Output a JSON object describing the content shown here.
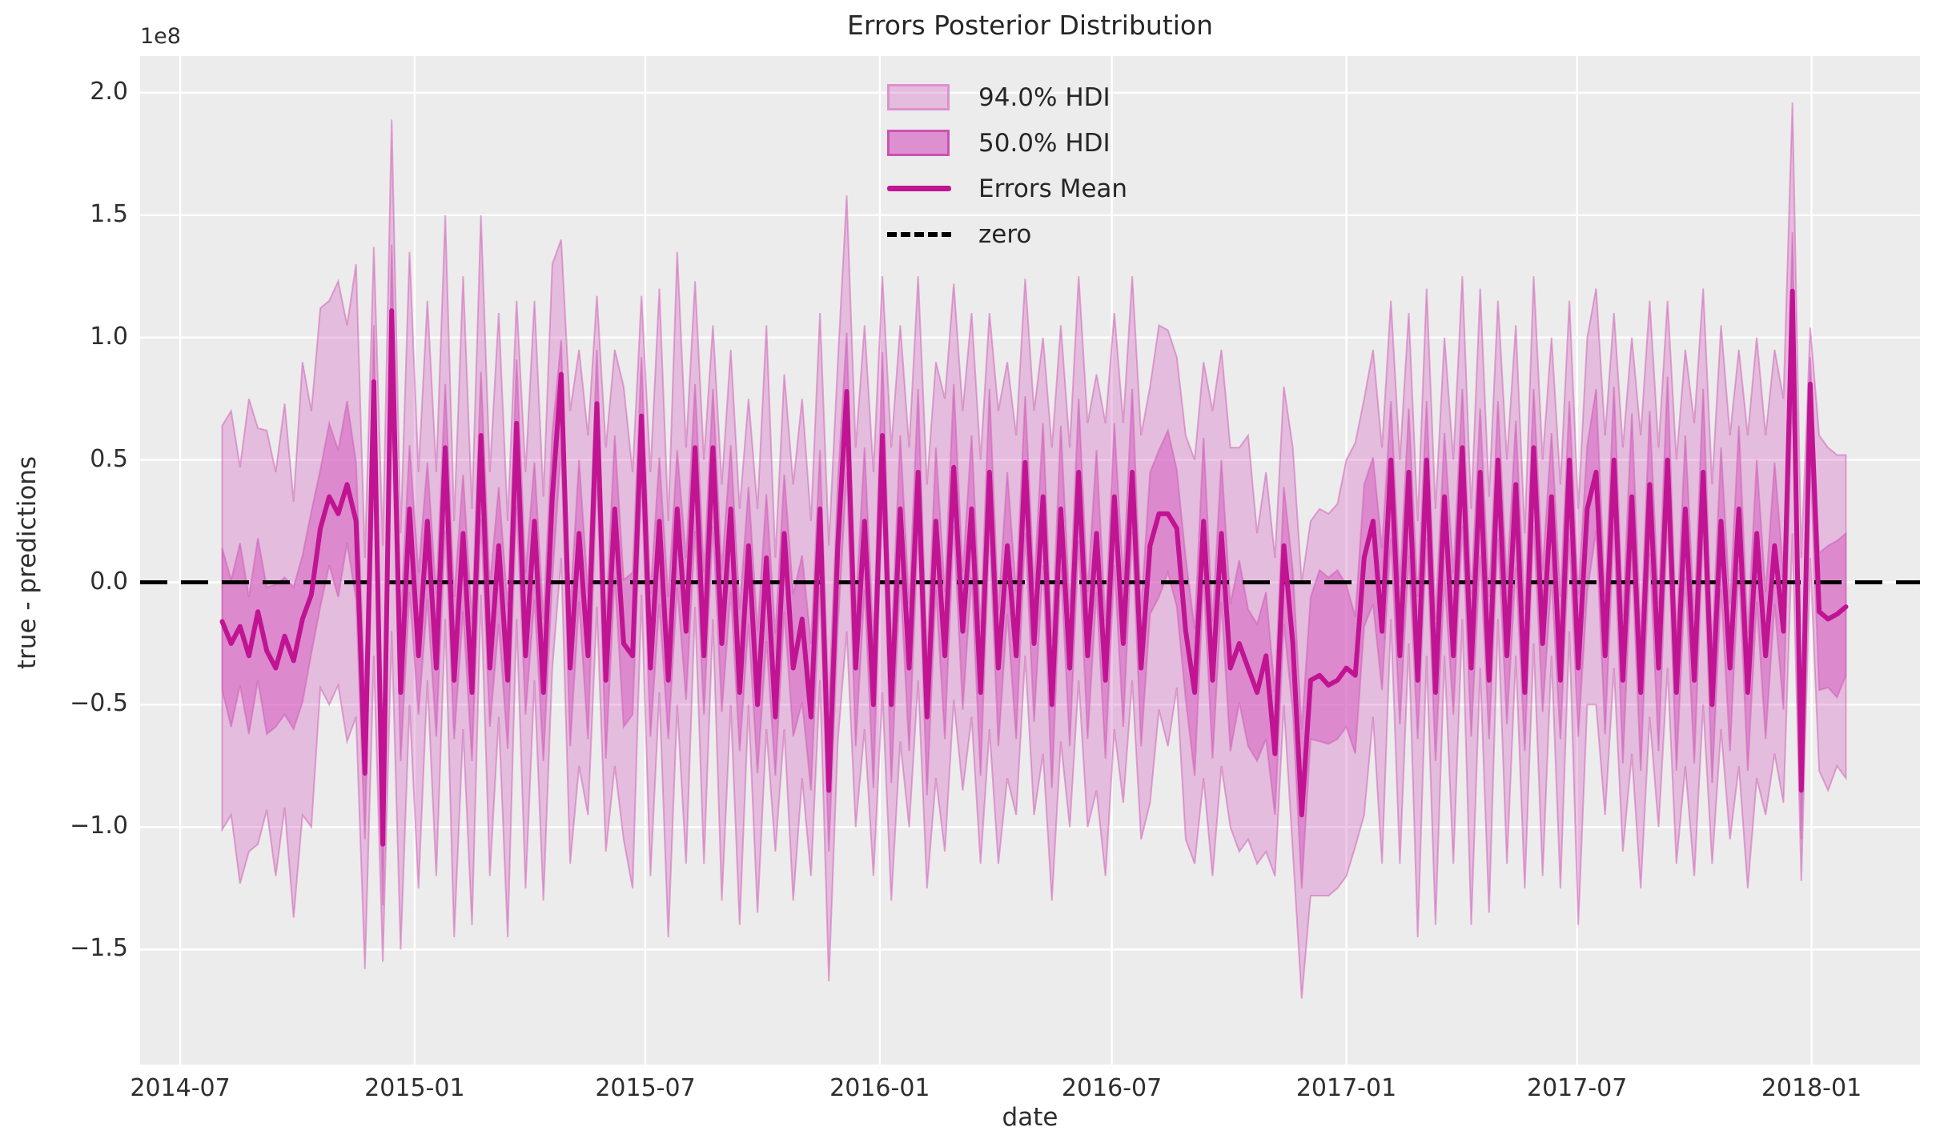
{
  "chart_data": {
    "type": "area",
    "title": "Errors Posterior Distribution",
    "xlabel": "date",
    "ylabel": "true - predictions",
    "offset_text": "1e8",
    "grid": true,
    "legend_position": "upper center",
    "x_tick_labels": [
      "2014-07",
      "2015-01",
      "2015-07",
      "2016-01",
      "2016-07",
      "2017-01",
      "2017-07",
      "2018-01"
    ],
    "x_tick_weeks": [
      -4.71,
      21.57,
      47.43,
      73.71,
      99.71,
      126.0,
      151.86,
      178.14
    ],
    "y_tick_labels": [
      "2.0",
      "1.5",
      "1.0",
      "0.5",
      "0.0",
      "−0.5",
      "−1.0",
      "−1.5"
    ],
    "y_tick_values": [
      2.0,
      1.5,
      1.0,
      0.5,
      0.0,
      -0.5,
      -1.0,
      -1.5
    ],
    "xlim_weeks": [
      -9.2,
      190.3
    ],
    "ylim": [
      -1.97,
      2.15
    ],
    "unit": "1e8",
    "series_start_date": "2014-08-03",
    "series_freq_days": 7,
    "mean": [
      -0.16,
      -0.25,
      -0.18,
      -0.3,
      -0.12,
      -0.28,
      -0.35,
      -0.22,
      -0.32,
      -0.15,
      -0.05,
      0.22,
      0.35,
      0.28,
      0.4,
      0.25,
      -0.78,
      0.82,
      -1.07,
      1.11,
      -0.45,
      0.3,
      -0.3,
      0.25,
      -0.35,
      0.55,
      -0.4,
      0.2,
      -0.45,
      0.6,
      -0.35,
      0.15,
      -0.4,
      0.65,
      -0.3,
      0.25,
      -0.45,
      0.35,
      0.85,
      -0.35,
      0.2,
      -0.3,
      0.73,
      -0.4,
      0.3,
      -0.25,
      -0.3,
      0.68,
      -0.35,
      0.25,
      -0.4,
      0.3,
      -0.2,
      0.55,
      -0.3,
      0.55,
      -0.25,
      0.3,
      -0.45,
      0.15,
      -0.5,
      0.1,
      -0.55,
      0.2,
      -0.35,
      -0.15,
      -0.55,
      0.3,
      -0.85,
      0.15,
      0.78,
      -0.35,
      0.25,
      -0.5,
      0.6,
      -0.5,
      0.3,
      -0.35,
      0.45,
      -0.55,
      0.25,
      -0.3,
      0.47,
      -0.2,
      0.3,
      -0.45,
      0.45,
      -0.35,
      0.15,
      -0.3,
      0.49,
      -0.25,
      0.35,
      -0.5,
      0.3,
      -0.35,
      0.45,
      -0.3,
      0.2,
      -0.4,
      0.35,
      -0.25,
      0.45,
      -0.35,
      0.15,
      0.28,
      0.28,
      0.22,
      -0.2,
      -0.45,
      0.25,
      -0.4,
      0.2,
      -0.35,
      -0.25,
      -0.35,
      -0.45,
      -0.3,
      -0.7,
      0.15,
      -0.25,
      -0.95,
      -0.4,
      -0.38,
      -0.42,
      -0.4,
      -0.35,
      -0.38,
      0.1,
      0.25,
      -0.2,
      0.5,
      -0.3,
      0.45,
      -0.4,
      0.5,
      -0.45,
      0.35,
      -0.3,
      0.55,
      -0.35,
      0.45,
      -0.4,
      0.5,
      -0.3,
      0.4,
      -0.45,
      0.55,
      -0.25,
      0.35,
      -0.4,
      0.5,
      -0.35,
      0.3,
      0.45,
      -0.3,
      0.5,
      -0.4,
      0.35,
      -0.45,
      0.4,
      -0.35,
      0.5,
      -0.45,
      0.3,
      -0.4,
      0.45,
      -0.5,
      0.25,
      -0.35,
      0.3,
      -0.45,
      0.2,
      -0.3,
      0.15,
      -0.2,
      1.19,
      -0.85,
      0.81,
      -0.12,
      -0.15,
      -0.13,
      -0.1
    ],
    "hdi94_hi": [
      0.64,
      0.7,
      0.47,
      0.75,
      0.63,
      0.62,
      0.45,
      0.73,
      0.33,
      0.9,
      0.7,
      1.12,
      1.15,
      1.23,
      1.05,
      1.3,
      0.1,
      1.37,
      0.15,
      1.89,
      0.2,
      1.35,
      0.45,
      1.15,
      0.45,
      1.5,
      0.25,
      1.25,
      0.3,
      1.5,
      0.45,
      1.1,
      0.25,
      1.15,
      0.45,
      1.15,
      0.35,
      1.3,
      1.4,
      0.7,
      0.95,
      0.6,
      1.17,
      0.55,
      0.95,
      0.8,
      0.45,
      1.17,
      0.45,
      1.2,
      0.25,
      1.35,
      0.55,
      1.23,
      0.5,
      1.05,
      0.4,
      0.95,
      0.3,
      0.75,
      0.3,
      1.05,
      0.1,
      0.85,
      0.4,
      0.75,
      0.25,
      1.1,
      0.15,
      0.9,
      1.58,
      0.55,
      1.05,
      0.45,
      1.25,
      0.55,
      1.05,
      0.55,
      1.25,
      0.4,
      0.9,
      0.75,
      1.22,
      0.7,
      1.1,
      0.5,
      1.1,
      0.7,
      0.9,
      0.6,
      1.24,
      0.7,
      1.0,
      0.55,
      1.05,
      0.55,
      1.25,
      0.65,
      0.85,
      0.65,
      1.1,
      0.65,
      1.25,
      0.6,
      0.8,
      1.05,
      1.03,
      0.92,
      0.6,
      0.5,
      0.9,
      0.7,
      0.95,
      0.55,
      0.55,
      0.6,
      0.2,
      0.45,
      0.1,
      0.8,
      0.55,
      0.0,
      0.25,
      0.3,
      0.28,
      0.32,
      0.5,
      0.57,
      0.75,
      0.95,
      0.55,
      1.15,
      0.5,
      1.1,
      0.25,
      1.2,
      0.3,
      1.0,
      0.5,
      1.25,
      0.3,
      1.2,
      0.35,
      1.15,
      0.5,
      1.05,
      0.2,
      1.25,
      0.5,
      1.0,
      0.4,
      1.15,
      0.3,
      1.0,
      1.2,
      0.6,
      1.1,
      0.55,
      1.0,
      0.6,
      1.15,
      0.55,
      1.15,
      0.5,
      0.95,
      0.65,
      1.2,
      0.4,
      1.05,
      0.6,
      0.95,
      0.6,
      1.0,
      0.6,
      0.95,
      0.75,
      1.96,
      0.1,
      1.04,
      0.6,
      0.55,
      0.52,
      0.52
    ],
    "hdi94_lo": [
      -1.01,
      -0.95,
      -1.23,
      -1.1,
      -1.07,
      -0.93,
      -1.2,
      -0.92,
      -1.37,
      -0.95,
      -1.0,
      -0.43,
      -0.5,
      -0.42,
      -0.65,
      -0.55,
      -1.58,
      -0.3,
      -1.55,
      -0.2,
      -1.5,
      -0.5,
      -1.25,
      -0.4,
      -1.2,
      -0.15,
      -1.45,
      -0.6,
      -1.4,
      -0.05,
      -1.2,
      -0.55,
      -1.45,
      -0.15,
      -1.25,
      -0.4,
      -1.3,
      -0.35,
      0.1,
      -1.15,
      -0.75,
      -0.95,
      -0.1,
      -1.1,
      -0.75,
      -1.05,
      -1.25,
      -0.05,
      -1.2,
      -0.45,
      -1.45,
      -0.5,
      -1.15,
      -0.1,
      -1.15,
      -0.15,
      -1.3,
      -0.5,
      -1.4,
      -0.5,
      -1.35,
      -0.6,
      -1.1,
      -0.6,
      -1.3,
      -0.8,
      -1.2,
      -0.4,
      -1.63,
      -0.65,
      -0.2,
      -1.0,
      -0.6,
      -1.2,
      -0.45,
      -1.3,
      -0.65,
      -1.0,
      -0.4,
      -1.25,
      -0.8,
      -1.1,
      -0.48,
      -0.85,
      -0.55,
      -1.15,
      -0.6,
      -1.15,
      -0.8,
      -0.95,
      -0.3,
      -0.95,
      -0.7,
      -1.3,
      -0.65,
      -1.0,
      -0.4,
      -1.0,
      -0.85,
      -1.2,
      -0.6,
      -0.9,
      -0.4,
      -1.05,
      -0.9,
      -0.52,
      -0.67,
      -0.43,
      -1.05,
      -1.15,
      -0.8,
      -1.2,
      -0.75,
      -1.0,
      -1.1,
      -1.05,
      -1.15,
      -1.1,
      -1.2,
      -0.5,
      -1.1,
      -1.7,
      -1.28,
      -1.28,
      -1.28,
      -1.25,
      -1.2,
      -1.08,
      -0.95,
      -0.55,
      -1.15,
      -0.15,
      -1.15,
      -0.25,
      -1.45,
      -0.3,
      -1.4,
      -0.3,
      -1.15,
      -0.15,
      -1.4,
      -0.35,
      -1.35,
      -0.15,
      -1.15,
      -0.3,
      -1.25,
      -0.25,
      -1.2,
      -0.3,
      -1.25,
      -0.2,
      -1.4,
      -0.5,
      -0.5,
      -0.95,
      -0.35,
      -1.1,
      -0.7,
      -1.25,
      -0.55,
      -1.0,
      -0.35,
      -1.15,
      -0.75,
      -1.2,
      -0.5,
      -1.15,
      -0.6,
      -1.05,
      -0.75,
      -1.25,
      -0.8,
      -0.95,
      -0.7,
      -0.9,
      0.2,
      -1.22,
      0.1,
      -0.77,
      -0.85,
      -0.75,
      -0.8
    ],
    "hdi50_hi": [
      0.14,
      0.01,
      0.16,
      -0.06,
      0.18,
      -0.02,
      -0.01,
      0.02,
      -0.02,
      0.11,
      0.29,
      0.46,
      0.65,
      0.54,
      0.74,
      0.49,
      -0.45,
      1.05,
      -0.75,
      1.38,
      -0.15,
      0.56,
      0.04,
      0.49,
      -0.05,
      0.81,
      -0.06,
      0.44,
      -0.15,
      0.86,
      -0.01,
      0.39,
      -0.1,
      0.91,
      0.04,
      0.49,
      -0.15,
      0.61,
      0.99,
      -0.11,
      0.5,
      -0.04,
      0.95,
      -0.16,
      0.6,
      0.01,
      0.04,
      0.92,
      -0.05,
      0.51,
      -0.06,
      0.54,
      0.1,
      0.81,
      0.04,
      0.79,
      0.05,
      0.56,
      -0.11,
      0.39,
      -0.2,
      0.36,
      -0.21,
      0.44,
      -0.05,
      0.11,
      -0.25,
      0.54,
      -0.5,
      0.41,
      1.02,
      -0.11,
      0.55,
      -0.24,
      0.94,
      -0.26,
      0.6,
      -0.09,
      0.79,
      -0.31,
      0.55,
      -0.04,
      0.81,
      0.04,
      0.6,
      -0.19,
      0.79,
      -0.11,
      0.45,
      -0.04,
      0.76,
      -0.01,
      0.65,
      -0.24,
      0.64,
      -0.11,
      0.75,
      -0.04,
      0.54,
      -0.16,
      0.65,
      0.01,
      0.79,
      -0.11,
      0.45,
      0.54,
      0.62,
      0.46,
      0.1,
      -0.19,
      0.59,
      -0.16,
      0.5,
      -0.09,
      0.09,
      -0.11,
      -0.17,
      -0.04,
      -0.45,
      0.39,
      0.05,
      -0.6,
      -0.06,
      0.05,
      0.02,
      0.05,
      -0.01,
      -0.14,
      0.4,
      0.51,
      0.14,
      0.74,
      0.0,
      0.71,
      -0.06,
      0.74,
      -0.15,
      0.61,
      0.04,
      0.79,
      -0.05,
      0.71,
      -0.06,
      0.74,
      0.0,
      0.66,
      -0.11,
      0.79,
      0.05,
      0.61,
      -0.06,
      0.74,
      -0.05,
      0.56,
      0.79,
      -0.06,
      0.8,
      -0.14,
      0.69,
      -0.21,
      0.7,
      -0.09,
      0.84,
      -0.21,
      0.6,
      -0.14,
      0.79,
      -0.26,
      0.55,
      -0.09,
      0.64,
      -0.21,
      0.5,
      -0.04,
      0.49,
      0.04,
      1.43,
      -0.55,
      0.92,
      0.12,
      0.15,
      0.17,
      0.2
    ],
    "hdi50_lo": [
      -0.44,
      -0.59,
      -0.42,
      -0.62,
      -0.4,
      -0.62,
      -0.59,
      -0.54,
      -0.6,
      -0.49,
      -0.29,
      -0.1,
      0.07,
      -0.06,
      0.16,
      -0.07,
      -1.05,
      0.45,
      -1.32,
      0.75,
      -0.73,
      -0.04,
      -0.54,
      -0.07,
      -0.63,
      0.21,
      -0.64,
      -0.12,
      -0.73,
      0.26,
      -0.59,
      -0.17,
      -0.68,
      0.31,
      -0.54,
      -0.07,
      -0.73,
      0.01,
      0.55,
      -0.67,
      -0.08,
      -0.64,
      0.45,
      -0.72,
      0.02,
      -0.59,
      -0.54,
      0.4,
      -0.63,
      -0.09,
      -0.64,
      -0.02,
      -0.48,
      0.21,
      -0.54,
      0.23,
      -0.53,
      -0.04,
      -0.69,
      -0.17,
      -0.78,
      -0.24,
      -0.79,
      -0.12,
      -0.63,
      -0.49,
      -0.85,
      -0.02,
      -1.1,
      -0.19,
      0.45,
      -0.67,
      -0.03,
      -0.84,
      0.36,
      -0.82,
      0.02,
      -0.69,
      0.21,
      -0.87,
      -0.03,
      -0.64,
      0.23,
      -0.52,
      0.02,
      -0.79,
      0.21,
      -0.67,
      -0.13,
      -0.64,
      0.2,
      -0.57,
      0.07,
      -0.84,
      0.06,
      -0.67,
      0.17,
      -0.64,
      -0.04,
      -0.72,
      0.07,
      -0.59,
      0.21,
      -0.67,
      -0.13,
      -0.06,
      0.04,
      -0.1,
      -0.48,
      -0.79,
      0.01,
      -0.72,
      -0.08,
      -0.69,
      -0.49,
      -0.67,
      -0.73,
      -0.64,
      -0.95,
      -0.17,
      -0.53,
      -1.25,
      -0.64,
      -0.65,
      -0.66,
      -0.64,
      -0.59,
      -0.7,
      -0.18,
      -0.09,
      -0.44,
      0.18,
      -0.58,
      0.11,
      -0.64,
      0.18,
      -0.73,
      0.01,
      -0.54,
      0.23,
      -0.63,
      0.11,
      -0.64,
      0.18,
      -0.58,
      0.06,
      -0.69,
      0.23,
      -0.53,
      0.01,
      -0.64,
      0.18,
      -0.63,
      -0.04,
      0.21,
      -0.62,
      0.22,
      -0.74,
      0.11,
      -0.77,
      0.12,
      -0.69,
      0.26,
      -0.77,
      0.02,
      -0.74,
      0.21,
      -0.82,
      -0.03,
      -0.69,
      0.06,
      -0.77,
      -0.08,
      -0.64,
      -0.09,
      -0.52,
      0.8,
      -1.05,
      0.5,
      -0.44,
      -0.43,
      -0.47,
      -0.38
    ]
  },
  "legend": {
    "items": [
      {
        "label": "94.0% HDI",
        "type": "patch-light"
      },
      {
        "label": "50.0% HDI",
        "type": "patch-dark"
      },
      {
        "label": "Errors Mean",
        "type": "line"
      },
      {
        "label": "zero",
        "type": "dashed-line"
      }
    ]
  },
  "colors": {
    "figure_bg": "#ffffff",
    "axes_bg": "#ececec",
    "grid": "#ffffff",
    "hdi_fill_base": "rgba(211,86,189,0.32)",
    "hdi50_fill_overlay": "rgba(211,86,189,0.5)",
    "band_edge": "rgba(205,90,180,0.5)",
    "mean_line": "#c01493",
    "zero_line": "#000000",
    "text": "#2e2e2e"
  }
}
